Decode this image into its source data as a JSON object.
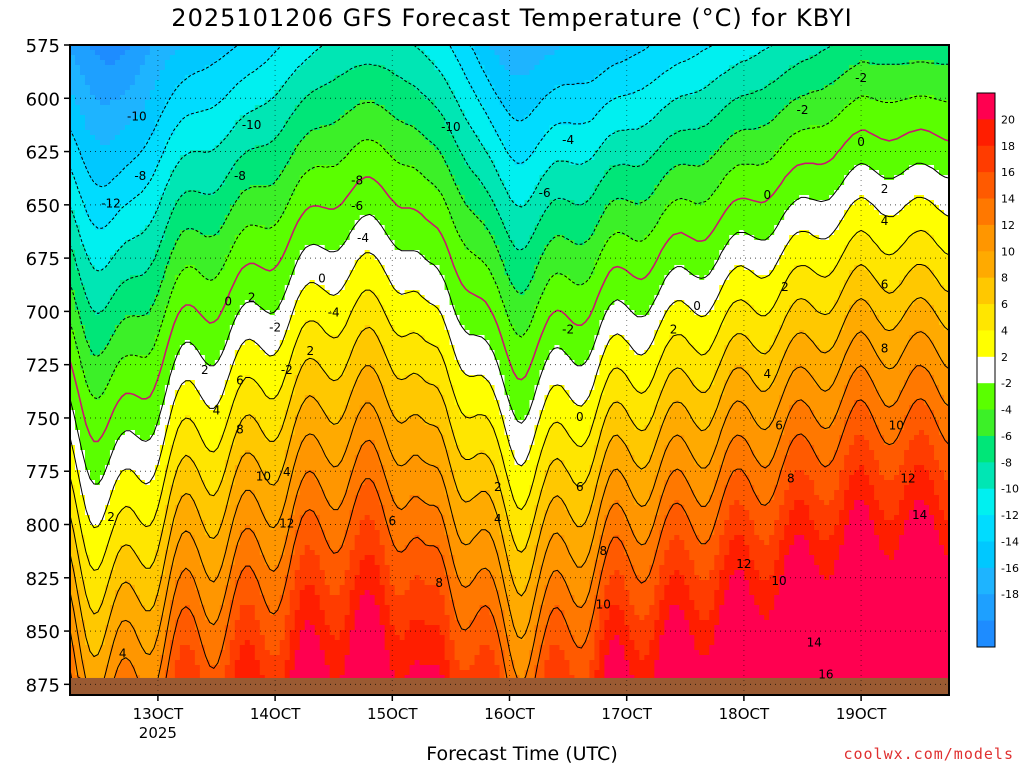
{
  "chart_data": {
    "type": "heatmap",
    "title": "2025101206 GFS Forecast Temperature (°C) for KBYI",
    "xlabel": "Forecast Time (UTC)",
    "ylabel": "",
    "y_axis": {
      "ticks": [
        575,
        600,
        625,
        650,
        675,
        700,
        725,
        750,
        775,
        800,
        825,
        850,
        875
      ],
      "range": [
        575,
        880
      ],
      "inverted": true
    },
    "x_axis": {
      "ticks": [
        {
          "label": "13OCT",
          "day": 13
        },
        {
          "label": "14OCT",
          "day": 14
        },
        {
          "label": "15OCT",
          "day": 15
        },
        {
          "label": "16OCT",
          "day": 16
        },
        {
          "label": "17OCT",
          "day": 17
        },
        {
          "label": "18OCT",
          "day": 18
        },
        {
          "label": "19OCT",
          "day": 19
        }
      ],
      "year_label": "2025",
      "range_days": [
        12.25,
        19.75
      ]
    },
    "grid": true,
    "colorbar": {
      "levels": [
        -20,
        -18,
        -16,
        -14,
        -12,
        -10,
        -8,
        -6,
        -4,
        -2,
        2,
        4,
        6,
        8,
        10,
        12,
        14,
        16,
        18,
        20,
        22
      ],
      "tick_labels": [
        "20",
        "18",
        "16",
        "14",
        "12",
        "10",
        "8",
        "6",
        "4",
        "2",
        "-2",
        "-4",
        "-6",
        "-8",
        "-10",
        "-12",
        "-14",
        "-16",
        "-18"
      ],
      "colors": [
        "#1e8cff",
        "#1ea0ff",
        "#1eb4ff",
        "#00c8ff",
        "#00dcff",
        "#00f0f0",
        "#00e6b4",
        "#00e678",
        "#3cf028",
        "#5aff00",
        "#ffffff",
        "#ffff00",
        "#ffe600",
        "#ffc800",
        "#ffaa00",
        "#ff9600",
        "#ff7800",
        "#ff5a00",
        "#ff3c00",
        "#ff1e00",
        "#ff0050"
      ]
    },
    "contour_labels": [
      {
        "text": "-10",
        "x": 12.82,
        "y": 608
      },
      {
        "text": "-10",
        "x": 13.8,
        "y": 612
      },
      {
        "text": "-10",
        "x": 15.5,
        "y": 613
      },
      {
        "text": "-8",
        "x": 12.85,
        "y": 636
      },
      {
        "text": "-8",
        "x": 13.7,
        "y": 636
      },
      {
        "text": "-8",
        "x": 14.7,
        "y": 638
      },
      {
        "text": "-6",
        "x": 14.7,
        "y": 650
      },
      {
        "text": "-6",
        "x": 16.3,
        "y": 644
      },
      {
        "text": "-4",
        "x": 16.5,
        "y": 619
      },
      {
        "text": "-4",
        "x": 14.75,
        "y": 665
      },
      {
        "text": "-4",
        "x": 14.5,
        "y": 700
      },
      {
        "text": "-2",
        "x": 14.0,
        "y": 707
      },
      {
        "text": "-2",
        "x": 14.1,
        "y": 727
      },
      {
        "text": "-2",
        "x": 16.5,
        "y": 708
      },
      {
        "text": "-2",
        "x": 18.5,
        "y": 605
      },
      {
        "text": "-2",
        "x": 19.0,
        "y": 590
      },
      {
        "text": "-12",
        "x": 12.6,
        "y": 649
      },
      {
        "text": "0",
        "x": 13.6,
        "y": 695
      },
      {
        "text": "0",
        "x": 14.4,
        "y": 684
      },
      {
        "text": "0",
        "x": 16.6,
        "y": 749
      },
      {
        "text": "0",
        "x": 17.6,
        "y": 697
      },
      {
        "text": "0",
        "x": 18.2,
        "y": 645
      },
      {
        "text": "0",
        "x": 19.0,
        "y": 620
      },
      {
        "text": "2",
        "x": 12.6,
        "y": 796
      },
      {
        "text": "2",
        "x": 13.4,
        "y": 727
      },
      {
        "text": "2",
        "x": 13.8,
        "y": 693
      },
      {
        "text": "2",
        "x": 14.3,
        "y": 718
      },
      {
        "text": "2",
        "x": 15.9,
        "y": 782
      },
      {
        "text": "2",
        "x": 17.4,
        "y": 708
      },
      {
        "text": "2",
        "x": 18.35,
        "y": 688
      },
      {
        "text": "2",
        "x": 19.2,
        "y": 642
      },
      {
        "text": "4",
        "x": 12.7,
        "y": 860
      },
      {
        "text": "4",
        "x": 13.5,
        "y": 746
      },
      {
        "text": "4",
        "x": 14.1,
        "y": 775
      },
      {
        "text": "4",
        "x": 15.9,
        "y": 797
      },
      {
        "text": "4",
        "x": 18.2,
        "y": 729
      },
      {
        "text": "4",
        "x": 19.2,
        "y": 657
      },
      {
        "text": "6",
        "x": 13.7,
        "y": 732
      },
      {
        "text": "6",
        "x": 15.0,
        "y": 798
      },
      {
        "text": "6",
        "x": 16.6,
        "y": 782
      },
      {
        "text": "6",
        "x": 18.3,
        "y": 753
      },
      {
        "text": "6",
        "x": 19.2,
        "y": 687
      },
      {
        "text": "8",
        "x": 13.7,
        "y": 755
      },
      {
        "text": "8",
        "x": 15.4,
        "y": 827
      },
      {
        "text": "8",
        "x": 16.8,
        "y": 812
      },
      {
        "text": "8",
        "x": 18.4,
        "y": 778
      },
      {
        "text": "8",
        "x": 19.2,
        "y": 717
      },
      {
        "text": "10",
        "x": 13.9,
        "y": 777
      },
      {
        "text": "10",
        "x": 16.8,
        "y": 837
      },
      {
        "text": "10",
        "x": 18.3,
        "y": 826
      },
      {
        "text": "10",
        "x": 19.3,
        "y": 753
      },
      {
        "text": "12",
        "x": 14.1,
        "y": 799
      },
      {
        "text": "12",
        "x": 18.0,
        "y": 818
      },
      {
        "text": "12",
        "x": 19.4,
        "y": 778
      },
      {
        "text": "14",
        "x": 18.6,
        "y": 855
      },
      {
        "text": "14",
        "x": 19.5,
        "y": 795
      },
      {
        "text": "16",
        "x": 18.7,
        "y": 870
      }
    ]
  },
  "credit": "coolwx.com/models"
}
